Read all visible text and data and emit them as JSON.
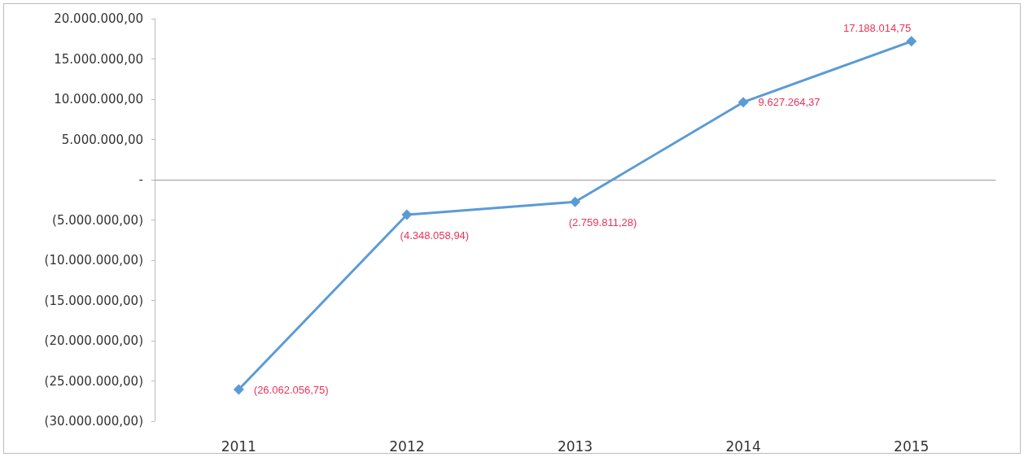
{
  "chart_data": {
    "type": "line",
    "categories": [
      "2011",
      "2012",
      "2013",
      "2014",
      "2015"
    ],
    "series": [
      {
        "color": "#5b9bd5",
        "values": [
          -26062056.75,
          -4348058.94,
          -2759811.28,
          9627264.37,
          17188014.75
        ],
        "value_labels": [
          "(26.062.056,75)",
          "(4.348.058,94)",
          "(2.759.811,28)",
          "9.627.264,37",
          "17.188.014,75"
        ]
      }
    ],
    "ylim": [
      -30000000,
      20000000
    ],
    "yticks": [
      {
        "value": -30000000,
        "label": "(30.000.000,00)"
      },
      {
        "value": -25000000,
        "label": "(25.000.000,00)"
      },
      {
        "value": -20000000,
        "label": "(20.000.000,00)"
      },
      {
        "value": -15000000,
        "label": "(15.000.000,00)"
      },
      {
        "value": -10000000,
        "label": "(10.000.000,00)"
      },
      {
        "value": -5000000,
        "label": "(5.000.000,00)"
      },
      {
        "value": 0,
        "label": "-"
      },
      {
        "value": 5000000,
        "label": "5.000.000,00"
      },
      {
        "value": 10000000,
        "label": "10.000.000,00"
      },
      {
        "value": 15000000,
        "label": "15.000.000,00"
      },
      {
        "value": 20000000,
        "label": "20.000.000,00"
      }
    ],
    "marker": "diamond",
    "line_style": "solid"
  }
}
